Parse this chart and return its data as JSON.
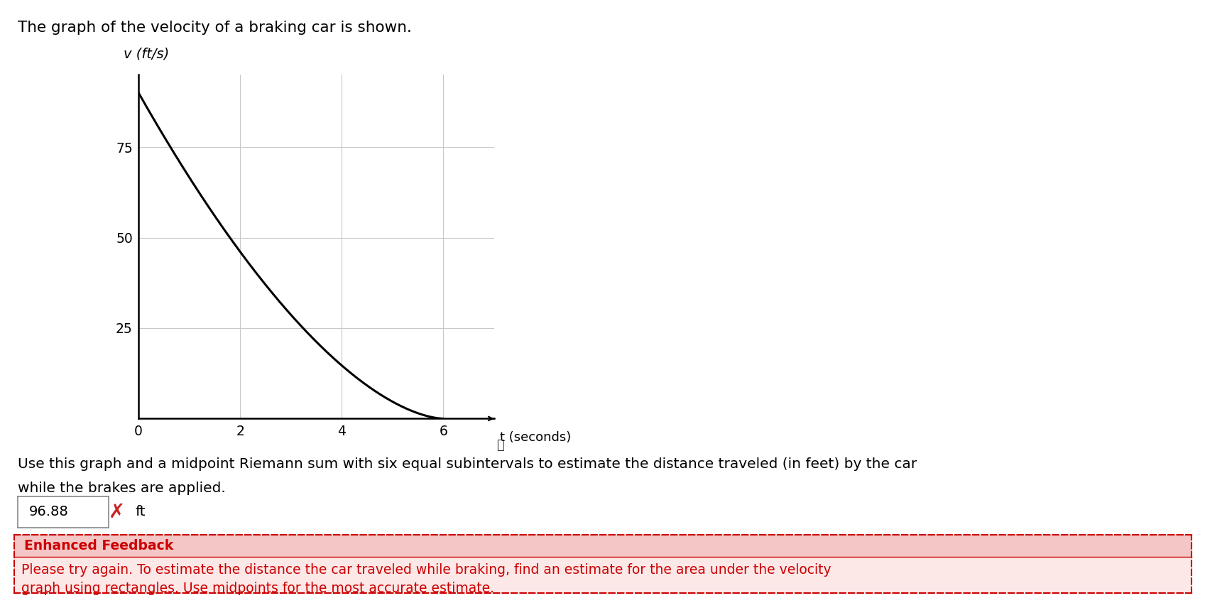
{
  "title_text": "The graph of the velocity of a braking car is shown.",
  "ylabel": "v (ft/s)",
  "xlabel": "t (seconds)",
  "x_ticks": [
    0,
    2,
    4,
    6
  ],
  "y_ticks": [
    25,
    50,
    75
  ],
  "xlim": [
    0,
    7
  ],
  "ylim": [
    0,
    95
  ],
  "curve_color": "#000000",
  "grid_color": "#c8c8c8",
  "axis_color": "#000000",
  "background_color": "#ffffff",
  "question_text1": "Use this graph and a midpoint Riemann sum with six equal subintervals to estimate the distance traveled (in feet) by the car",
  "question_text2": "while the brakes are applied.",
  "answer_value": "96.88",
  "answer_unit": "ft",
  "feedback_title": "Enhanced Feedback",
  "feedback_body1": "Please try again. To estimate the distance the car traveled while braking, find an estimate for the area under the velocity",
  "feedback_body2": "graph using rectangles. Use midpoints for the most accurate estimate.",
  "feedback_header_bg": "#f5c6c6",
  "feedback_body_bg": "#fde8e8",
  "feedback_border": "#cc0000",
  "feedback_title_color": "#cc0000",
  "feedback_body_color": "#cc0000",
  "v0": 90,
  "curve_power": 1.65,
  "curve_end_t": 6
}
